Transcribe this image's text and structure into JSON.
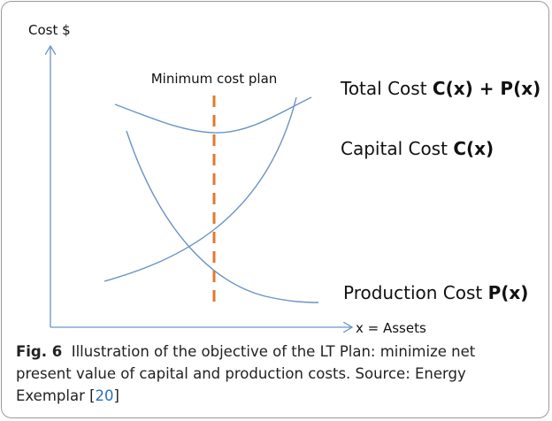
{
  "axes": {
    "y_label": "Cost $",
    "x_label": "x = Assets"
  },
  "annotation": "Minimum cost plan",
  "curves": [
    {
      "label": "Total Cost",
      "formula": "C(x) + P(x)"
    },
    {
      "label": "Capital Cost",
      "formula": "C(x)"
    },
    {
      "label": "Production Cost",
      "formula": "P(x)"
    }
  ],
  "caption": {
    "label": "Fig. 6",
    "text": "Illustration of the objective of the LT Plan: minimize net present value of capital and production costs. Source: Energy Exemplar [",
    "reference": "20",
    "end": "]"
  }
}
